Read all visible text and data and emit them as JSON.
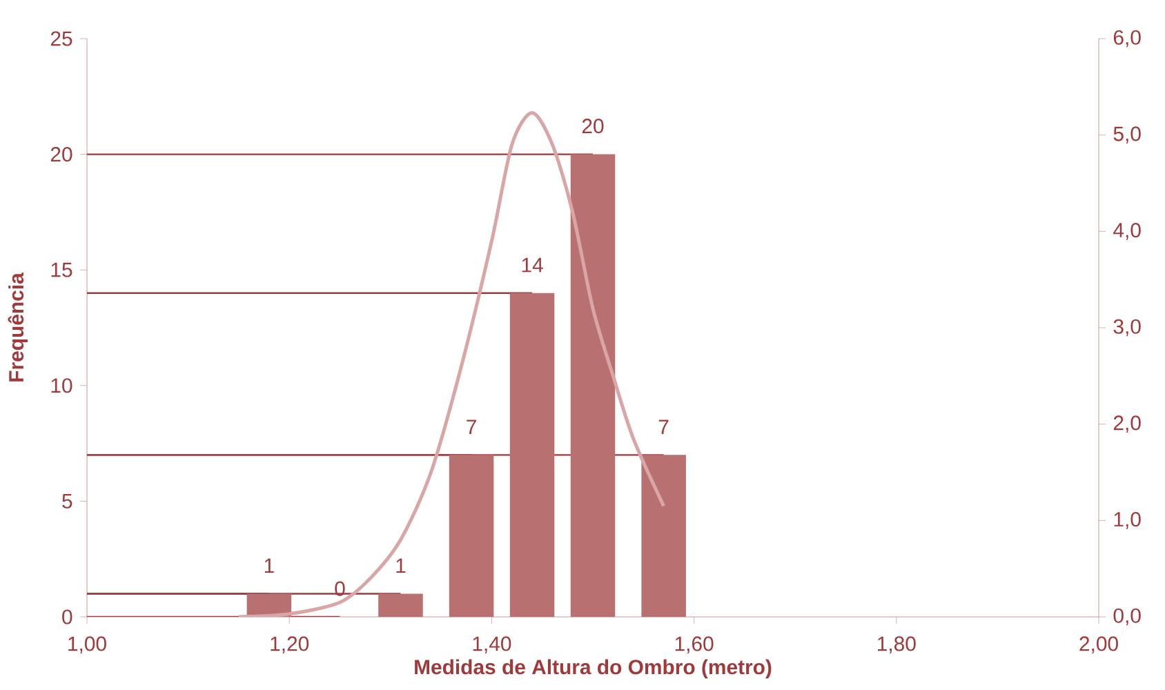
{
  "chart_data": {
    "type": "bar",
    "xlabel": "Medidas de Altura do Ombro (metro)",
    "ylabel": "Frequência",
    "x": [
      1.18,
      1.25,
      1.31,
      1.38,
      1.44,
      1.5,
      1.57
    ],
    "series": [
      {
        "color": "#b87070",
        "values": [
          1,
          0,
          1,
          7,
          14,
          20,
          7
        ],
        "value_labels": [
          "1",
          "0",
          "1",
          "7",
          "14",
          "20",
          "7"
        ],
        "xerrors": [
          [
            1.0,
            1.18
          ],
          [
            1.0,
            1.25
          ],
          [
            1.0,
            1.31
          ],
          [
            1.0,
            1.38
          ],
          [
            1.0,
            1.44
          ],
          [
            1.0,
            1.5
          ],
          [
            1.0,
            1.57
          ]
        ]
      },
      {
        "type": "line",
        "axis": "y2",
        "color": "#d9a5a5",
        "x": [
          1.15,
          1.2,
          1.25,
          1.28,
          1.31,
          1.34,
          1.37,
          1.4,
          1.42,
          1.44,
          1.46,
          1.48,
          1.5,
          1.52,
          1.54,
          1.57
        ],
        "values": [
          0.0,
          0.03,
          0.15,
          0.4,
          0.8,
          1.5,
          2.6,
          3.9,
          4.9,
          5.23,
          4.9,
          4.2,
          3.2,
          2.5,
          1.85,
          1.15
        ]
      }
    ],
    "xlim": [
      1.0,
      2.0
    ],
    "xticks": [
      {
        "value": 1.0,
        "label": "1,00"
      },
      {
        "value": 1.2,
        "label": "1,20"
      },
      {
        "value": 1.4,
        "label": "1,40"
      },
      {
        "value": 1.6,
        "label": "1,60"
      },
      {
        "value": 1.8,
        "label": "1,80"
      },
      {
        "value": 2.0,
        "label": "2,00"
      }
    ],
    "ylim": [
      0,
      25
    ],
    "yticks": [
      0,
      5,
      10,
      15,
      20,
      25
    ],
    "y2lim": [
      0,
      6
    ],
    "y2ticks": [
      {
        "value": 0,
        "label": "0,0"
      },
      {
        "value": 1,
        "label": "1,0"
      },
      {
        "value": 2,
        "label": "2,0"
      },
      {
        "value": 3,
        "label": "3,0"
      },
      {
        "value": 4,
        "label": "4,0"
      },
      {
        "value": 5,
        "label": "5,0"
      },
      {
        "value": 6,
        "label": "6,0"
      }
    ],
    "grid": false,
    "marker": "none",
    "line_style": "solid"
  }
}
